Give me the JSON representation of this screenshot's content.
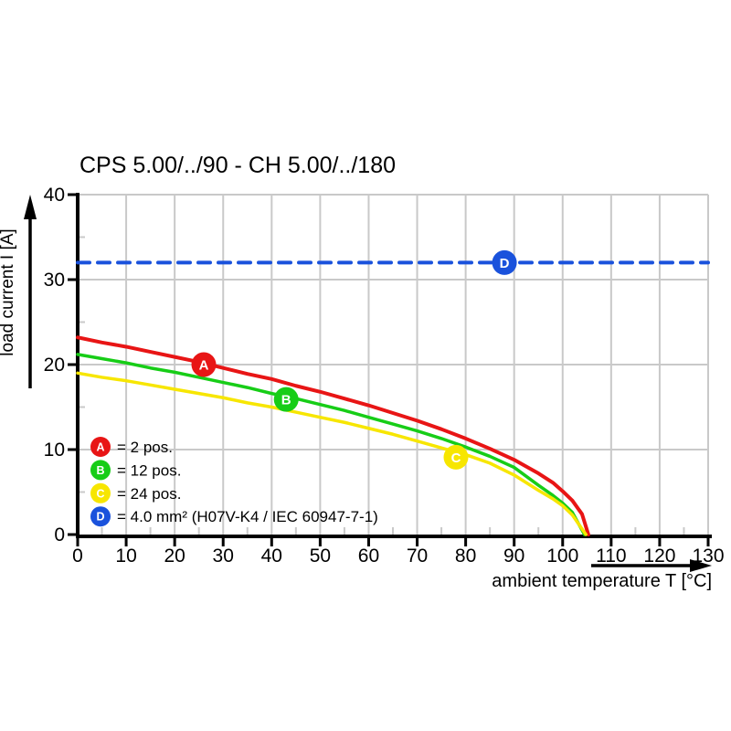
{
  "page": {
    "background": "#ffffff"
  },
  "chart_data": {
    "type": "line",
    "title": "CPS 5.00/../90 - CH 5.00/../180",
    "xlabel": "ambient temperature T [°C]",
    "ylabel": "load current I [A]",
    "xlim": [
      0,
      130
    ],
    "ylim": [
      0,
      40
    ],
    "x_tick_step": 10,
    "y_tick_step": 10,
    "minor_tick_step": 5,
    "grid": true,
    "grid_color": "#c9c9c9",
    "axis_color": "#000000",
    "legend_position": "inside-lower-left",
    "x_ticks": [
      0,
      10,
      20,
      30,
      40,
      50,
      60,
      70,
      80,
      90,
      100,
      110,
      120,
      130
    ],
    "y_ticks": [
      0,
      10,
      20,
      30,
      40
    ],
    "series": [
      {
        "id": "A",
        "label": "= 2 pos.",
        "color": "#e81515",
        "line_style": "solid",
        "marker": {
          "x": 26,
          "y": 20
        },
        "points": [
          [
            0,
            23.2
          ],
          [
            5,
            22.6
          ],
          [
            10,
            22.1
          ],
          [
            15,
            21.5
          ],
          [
            20,
            20.9
          ],
          [
            25,
            20.3
          ],
          [
            30,
            19.6
          ],
          [
            35,
            18.9
          ],
          [
            40,
            18.3
          ],
          [
            45,
            17.5
          ],
          [
            50,
            16.8
          ],
          [
            55,
            16.0
          ],
          [
            60,
            15.2
          ],
          [
            65,
            14.3
          ],
          [
            70,
            13.4
          ],
          [
            75,
            12.4
          ],
          [
            80,
            11.3
          ],
          [
            85,
            10.1
          ],
          [
            90,
            8.8
          ],
          [
            95,
            7.2
          ],
          [
            98,
            6.1
          ],
          [
            100,
            5.1
          ],
          [
            102,
            4.0
          ],
          [
            104,
            2.4
          ],
          [
            105.3,
            0
          ]
        ]
      },
      {
        "id": "B",
        "label": "= 12 pos.",
        "color": "#17cd17",
        "line_style": "solid",
        "marker": {
          "x": 43,
          "y": 15.9
        },
        "points": [
          [
            0,
            21.2
          ],
          [
            5,
            20.7
          ],
          [
            10,
            20.2
          ],
          [
            15,
            19.6
          ],
          [
            20,
            19.1
          ],
          [
            25,
            18.5
          ],
          [
            30,
            17.9
          ],
          [
            35,
            17.3
          ],
          [
            40,
            16.6
          ],
          [
            45,
            16.0
          ],
          [
            50,
            15.3
          ],
          [
            55,
            14.6
          ],
          [
            60,
            13.8
          ],
          [
            65,
            13.0
          ],
          [
            70,
            12.2
          ],
          [
            75,
            11.3
          ],
          [
            80,
            10.3
          ],
          [
            85,
            9.2
          ],
          [
            90,
            7.9
          ],
          [
            95,
            5.8
          ],
          [
            98,
            4.6
          ],
          [
            100,
            3.7
          ],
          [
            102,
            2.6
          ],
          [
            104.5,
            0
          ]
        ]
      },
      {
        "id": "C",
        "label": "= 24 pos.",
        "color": "#f7e600",
        "line_style": "solid",
        "marker": {
          "x": 78,
          "y": 9.1
        },
        "points": [
          [
            0,
            19.0
          ],
          [
            5,
            18.5
          ],
          [
            10,
            18.1
          ],
          [
            15,
            17.6
          ],
          [
            20,
            17.1
          ],
          [
            25,
            16.6
          ],
          [
            30,
            16.1
          ],
          [
            35,
            15.5
          ],
          [
            40,
            15.0
          ],
          [
            45,
            14.4
          ],
          [
            50,
            13.8
          ],
          [
            55,
            13.2
          ],
          [
            60,
            12.5
          ],
          [
            65,
            11.8
          ],
          [
            70,
            11.0
          ],
          [
            75,
            10.2
          ],
          [
            80,
            9.4
          ],
          [
            85,
            8.4
          ],
          [
            90,
            7.0
          ],
          [
            95,
            5.2
          ],
          [
            98,
            4.2
          ],
          [
            100,
            3.4
          ],
          [
            102,
            2.3
          ],
          [
            104.8,
            0
          ]
        ]
      },
      {
        "id": "D",
        "label": "= 4.0 mm² (H07V-K4 / IEC 60947-7-1)",
        "color": "#1a52dc",
        "line_style": "dashed",
        "marker": {
          "x": 88,
          "y": 32
        },
        "points": [
          [
            0,
            32
          ],
          [
            130,
            32
          ]
        ]
      }
    ]
  }
}
